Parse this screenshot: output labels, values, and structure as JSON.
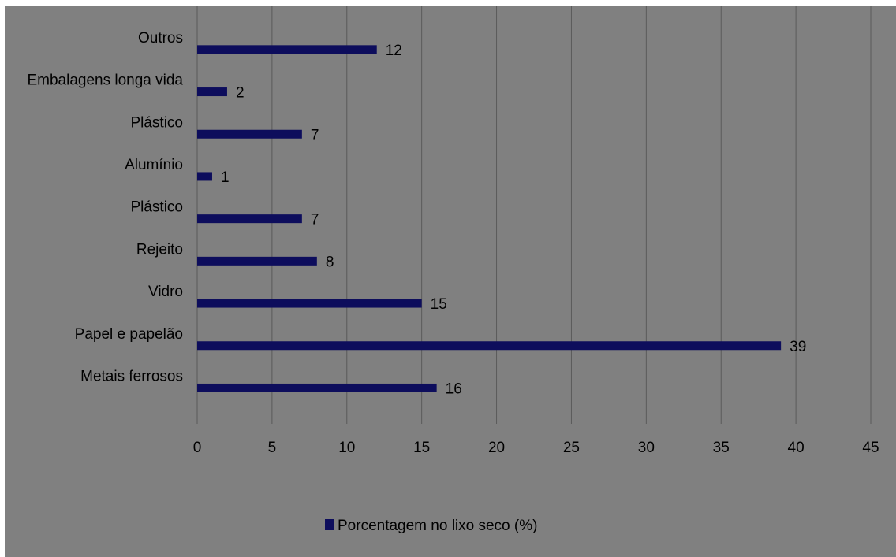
{
  "chart_data": {
    "type": "bar",
    "orientation": "horizontal",
    "categories": [
      "Metais ferrosos",
      "Papel e papelão",
      "Vidro",
      "Rejeito",
      "Plástico",
      "Alumínio",
      "Plástico",
      "Embalagens longa vida",
      "Outros"
    ],
    "series": [
      {
        "name": "Porcentagem no lixo seco (%)",
        "values": [
          16,
          39,
          15,
          8,
          7,
          1,
          7,
          2,
          12
        ]
      }
    ],
    "xlim": [
      0,
      45
    ],
    "xticks": [
      0,
      5,
      10,
      15,
      20,
      25,
      30,
      35,
      40,
      45
    ],
    "tick_labels": [
      "0",
      "5",
      "10",
      "15",
      "20",
      "25",
      "30",
      "35",
      "40",
      "45"
    ],
    "data_labels": [
      "16",
      "39",
      "15",
      "8",
      "7",
      "1",
      "7",
      "2",
      "12"
    ],
    "grid": "vertical",
    "legend_position": "bottom",
    "title": "",
    "xlabel": "",
    "ylabel": "",
    "colors": {
      "bar": "#0d0d5c",
      "background": "#808080",
      "gridline": "#5a5a5a"
    }
  }
}
